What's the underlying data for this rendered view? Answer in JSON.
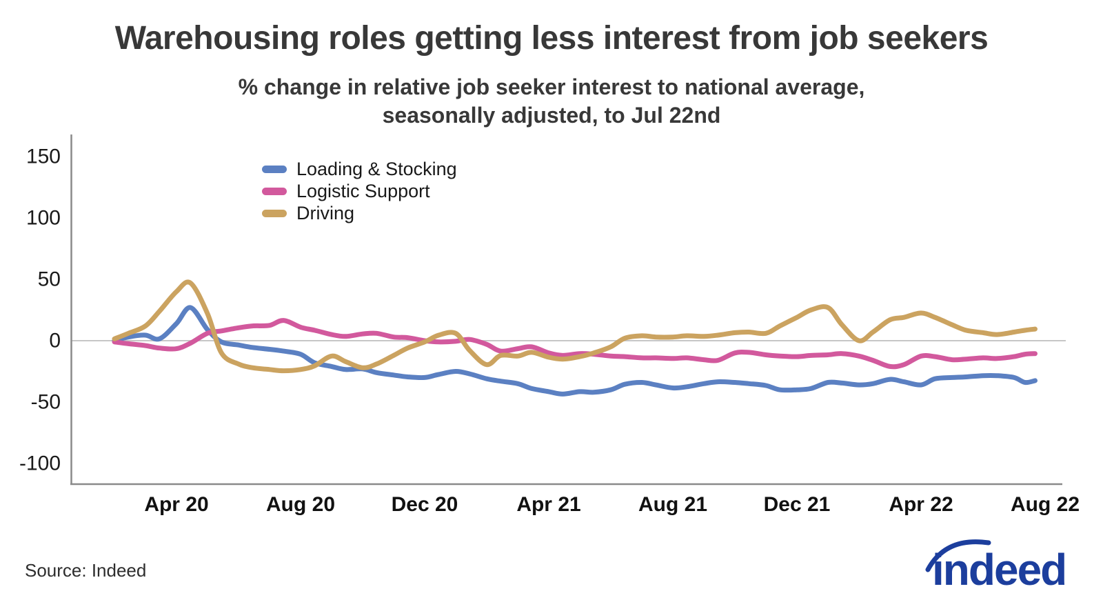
{
  "header": {
    "title": "Warehousing roles getting less interest from job seekers",
    "subtitle_line1": "% change in relative job seeker interest to national average,",
    "subtitle_line2": "seasonally adjusted, to Jul 22nd"
  },
  "footer": {
    "source": "Source: Indeed",
    "logo_text": "indeed"
  },
  "colors": {
    "axis": "#8a8a8a",
    "zero_line": "#c6c6c6",
    "tick_text": "#1a1a1a",
    "title_text": "#383838",
    "logo_blue": "#1c3e9d"
  },
  "chart_data": {
    "type": "line",
    "title": "Warehousing roles getting less interest from job seekers",
    "subtitle": "% change in relative job seeker interest to national average, seasonally adjusted, to Jul 22nd",
    "xlabel": "",
    "ylabel": "",
    "grid": "zero-line-only",
    "legend_position": "top-left-inside",
    "ylim": [
      -115,
      165
    ],
    "yticks": [
      150,
      100,
      50,
      0,
      -50,
      -100
    ],
    "xticks": [
      {
        "label": "Apr 20",
        "date": "2020-04-01"
      },
      {
        "label": "Aug 20",
        "date": "2020-08-01"
      },
      {
        "label": "Dec 20",
        "date": "2020-12-01"
      },
      {
        "label": "Apr 21",
        "date": "2021-04-01"
      },
      {
        "label": "Aug 21",
        "date": "2021-08-01"
      },
      {
        "label": "Dec 21",
        "date": "2021-12-01"
      },
      {
        "label": "Apr 22",
        "date": "2022-04-01"
      },
      {
        "label": "Aug 22",
        "date": "2022-08-01"
      }
    ],
    "x_dates": [
      "2020-02-01",
      "2020-02-15",
      "2020-03-01",
      "2020-03-15",
      "2020-04-01",
      "2020-04-15",
      "2020-05-01",
      "2020-05-15",
      "2020-06-01",
      "2020-06-15",
      "2020-07-01",
      "2020-07-15",
      "2020-08-01",
      "2020-08-15",
      "2020-09-01",
      "2020-09-15",
      "2020-10-01",
      "2020-10-15",
      "2020-11-01",
      "2020-11-15",
      "2020-12-01",
      "2020-12-15",
      "2021-01-01",
      "2021-01-15",
      "2021-02-01",
      "2021-02-15",
      "2021-03-01",
      "2021-03-15",
      "2021-04-01",
      "2021-04-15",
      "2021-05-01",
      "2021-05-15",
      "2021-06-01",
      "2021-06-15",
      "2021-07-01",
      "2021-07-15",
      "2021-08-01",
      "2021-08-15",
      "2021-09-01",
      "2021-09-15",
      "2021-10-01",
      "2021-10-15",
      "2021-11-01",
      "2021-11-15",
      "2021-12-01",
      "2021-12-15",
      "2022-01-01",
      "2022-01-15",
      "2022-02-01",
      "2022-02-15",
      "2022-03-01",
      "2022-03-15",
      "2022-04-01",
      "2022-04-15",
      "2022-05-01",
      "2022-05-15",
      "2022-06-01",
      "2022-06-15",
      "2022-07-01",
      "2022-07-12",
      "2022-07-22"
    ],
    "series": [
      {
        "name": "Loading & Stocking",
        "color": "#5b80c2",
        "values": [
          0,
          3,
          4.5,
          1.5,
          14,
          27,
          9,
          -1,
          -3.5,
          -5.5,
          -7,
          -8.5,
          -11,
          -18,
          -21,
          -23.5,
          -23,
          -26,
          -28,
          -29.5,
          -30,
          -27.5,
          -25,
          -27,
          -31,
          -33,
          -35,
          -39,
          -41.5,
          -43.5,
          -41.5,
          -42,
          -40,
          -35.5,
          -34,
          -36,
          -38.5,
          -37.5,
          -35,
          -33.5,
          -34,
          -35,
          -36.5,
          -40,
          -40,
          -39,
          -34,
          -34.5,
          -36,
          -35,
          -31.5,
          -33.5,
          -36,
          -31,
          -30,
          -29.5,
          -28.5,
          -28.5,
          -30,
          -34,
          -32.5
        ]
      },
      {
        "name": "Logistic Support",
        "color": "#d2599d",
        "values": [
          -1,
          -2.5,
          -4,
          -6,
          -6.5,
          -2,
          6,
          8,
          10.5,
          12,
          12.5,
          16.5,
          11,
          8.5,
          5,
          3.5,
          5.5,
          6,
          3,
          2.5,
          0,
          -1,
          -0.5,
          1,
          -3,
          -8.5,
          -6.5,
          -5,
          -10,
          -12,
          -10.5,
          -11,
          -12.5,
          -13,
          -14,
          -14,
          -14.5,
          -14,
          -15.5,
          -16,
          -10,
          -9.5,
          -11.5,
          -12.5,
          -13,
          -12,
          -11.5,
          -10.5,
          -12.5,
          -16,
          -21,
          -19.5,
          -12.5,
          -13,
          -15.5,
          -15,
          -14,
          -14.5,
          -13,
          -11,
          -10.5
        ]
      },
      {
        "name": "Driving",
        "color": "#cba360",
        "values": [
          1.5,
          6,
          12,
          24,
          40,
          47,
          22,
          -10,
          -19,
          -22,
          -23.5,
          -24.5,
          -23.5,
          -20.5,
          -12.5,
          -17,
          -22,
          -19,
          -12,
          -6,
          -1,
          4.5,
          6,
          -8,
          -19.5,
          -12,
          -12.5,
          -9.5,
          -13.5,
          -15,
          -13,
          -10,
          -5,
          2,
          4,
          3,
          3,
          4,
          3.5,
          4.5,
          6.5,
          7,
          6,
          12,
          19,
          25,
          27,
          13,
          0,
          7,
          17,
          19,
          22.5,
          19,
          13,
          8.5,
          6.5,
          5,
          7,
          8.5,
          9.5
        ]
      }
    ]
  }
}
